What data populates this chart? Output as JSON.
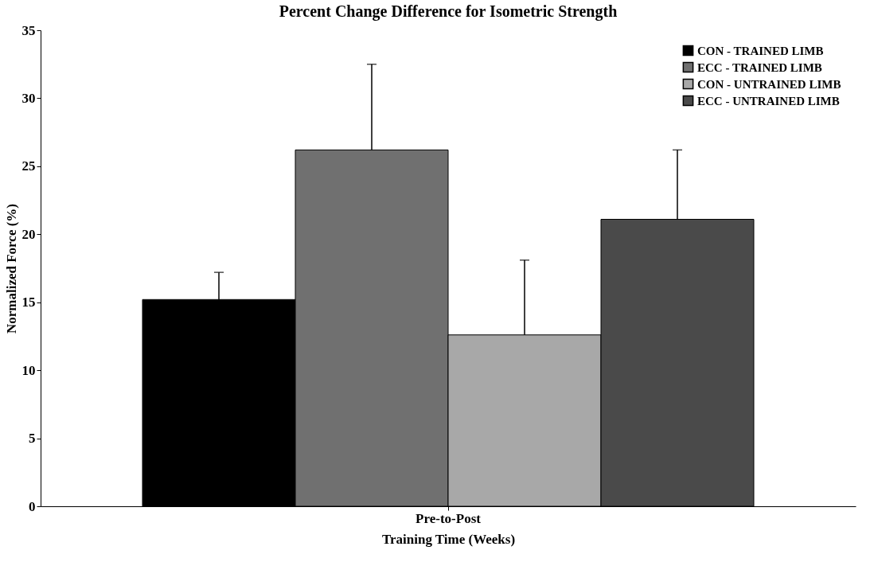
{
  "chart_data": {
    "type": "bar",
    "title": "Percent Change Difference for Isometric Strength",
    "xlabel": "Training Time (Weeks)",
    "ylabel": "Normalized Force (%)",
    "categories": [
      "Pre-to-Post"
    ],
    "series": [
      {
        "name": "CON - TRAINED LIMB",
        "color": "#000000",
        "values": [
          15.2
        ],
        "errors": [
          [
            15.2,
            17.2
          ]
        ]
      },
      {
        "name": "ECC - TRAINED LIMB",
        "color": "#707070",
        "values": [
          26.2
        ],
        "errors": [
          [
            26.2,
            32.5
          ]
        ]
      },
      {
        "name": "CON - UNTRAINED LIMB",
        "color": "#a8a8a8",
        "values": [
          12.6
        ],
        "errors": [
          [
            12.6,
            18.1
          ]
        ]
      },
      {
        "name": "ECC - UNTRAINED LIMB",
        "color": "#4a4a4a",
        "values": [
          21.1
        ],
        "errors": [
          [
            21.1,
            26.2
          ]
        ]
      }
    ],
    "ylim": [
      0,
      35
    ],
    "yticks": [
      0,
      5,
      10,
      15,
      20,
      25,
      30,
      35
    ],
    "grid": false,
    "legend": "top right"
  }
}
